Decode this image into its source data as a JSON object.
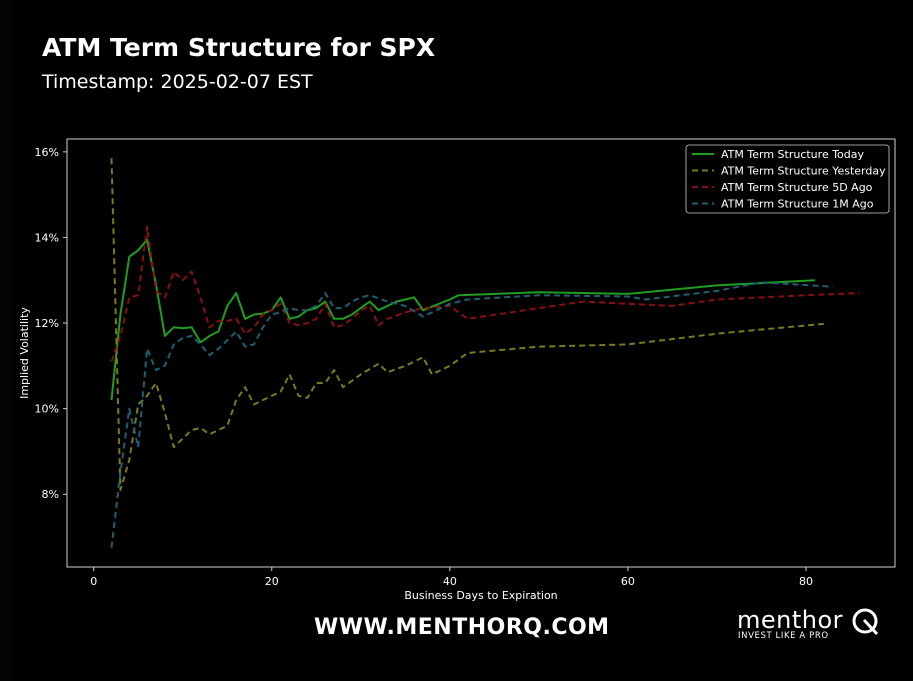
{
  "header": {
    "title": "ATM Term Structure for SPX",
    "subtitle": "Timestamp: 2025-02-07 EST"
  },
  "footer": {
    "url": "WWW.MENTHORQ.COM",
    "logo_word": "menthor",
    "logo_tagline": "INVEST LIKE A PRO",
    "logo_icon": "q-magnifier-icon"
  },
  "colors": {
    "background": "#000000",
    "today": "#1f9e1f",
    "yesterday": "#7a7a1e",
    "five_day": "#8b0f0f",
    "one_month": "#1f5f73"
  },
  "chart_data": {
    "type": "line",
    "xlabel": "Business Days to Expiration",
    "ylabel": "Implied Volatility",
    "xlim": [
      -3,
      90
    ],
    "ylim": [
      6.3,
      16.3
    ],
    "xticks": [
      0,
      20,
      40,
      60,
      80
    ],
    "yticks": [
      8,
      10,
      12,
      14,
      16
    ],
    "ytick_format": "%",
    "grid": false,
    "legend_position": "top-right",
    "series": [
      {
        "name": "ATM Term Structure Today",
        "style": "solid",
        "color": "#1f9e1f",
        "points": [
          [
            2,
            10.2
          ],
          [
            3,
            12.2
          ],
          [
            4,
            13.55
          ],
          [
            5,
            13.7
          ],
          [
            6,
            13.95
          ],
          [
            7,
            12.9
          ],
          [
            8,
            11.7
          ],
          [
            9,
            11.9
          ],
          [
            10,
            11.88
          ],
          [
            11,
            11.9
          ],
          [
            12,
            11.55
          ],
          [
            13,
            11.7
          ],
          [
            14,
            11.8
          ],
          [
            15,
            12.4
          ],
          [
            16,
            12.7
          ],
          [
            17,
            12.1
          ],
          [
            18,
            12.2
          ],
          [
            19,
            12.22
          ],
          [
            20,
            12.3
          ],
          [
            21,
            12.6
          ],
          [
            22,
            12.1
          ],
          [
            23,
            12.15
          ],
          [
            24,
            12.3
          ],
          [
            25,
            12.35
          ],
          [
            26,
            12.5
          ],
          [
            27,
            12.1
          ],
          [
            28,
            12.1
          ],
          [
            29,
            12.2
          ],
          [
            30,
            12.35
          ],
          [
            31,
            12.5
          ],
          [
            32,
            12.3
          ],
          [
            33,
            12.4
          ],
          [
            34,
            12.5
          ],
          [
            35,
            12.55
          ],
          [
            36,
            12.6
          ],
          [
            37,
            12.3
          ],
          [
            40,
            12.55
          ],
          [
            41,
            12.65
          ],
          [
            50,
            12.72
          ],
          [
            60,
            12.68
          ],
          [
            70,
            12.88
          ],
          [
            81,
            13.0
          ]
        ]
      },
      {
        "name": "ATM Term Structure Yesterday",
        "style": "dashed",
        "color": "#7a7a1e",
        "points": [
          [
            2,
            15.85
          ],
          [
            3,
            8.1
          ],
          [
            4,
            8.8
          ],
          [
            5,
            10.1
          ],
          [
            6,
            10.3
          ],
          [
            7,
            10.6
          ],
          [
            8,
            9.9
          ],
          [
            9,
            9.1
          ],
          [
            10,
            9.3
          ],
          [
            11,
            9.5
          ],
          [
            12,
            9.55
          ],
          [
            13,
            9.4
          ],
          [
            14,
            9.5
          ],
          [
            15,
            9.6
          ],
          [
            16,
            10.2
          ],
          [
            17,
            10.5
          ],
          [
            18,
            10.1
          ],
          [
            20,
            10.3
          ],
          [
            21,
            10.4
          ],
          [
            22,
            10.8
          ],
          [
            23,
            10.3
          ],
          [
            24,
            10.25
          ],
          [
            25,
            10.6
          ],
          [
            26,
            10.6
          ],
          [
            27,
            10.9
          ],
          [
            28,
            10.5
          ],
          [
            30,
            10.8
          ],
          [
            32,
            11.05
          ],
          [
            33,
            10.85
          ],
          [
            35,
            11.0
          ],
          [
            37,
            11.2
          ],
          [
            38,
            10.8
          ],
          [
            40,
            11.0
          ],
          [
            42,
            11.3
          ],
          [
            50,
            11.45
          ],
          [
            60,
            11.5
          ],
          [
            70,
            11.75
          ],
          [
            75,
            11.85
          ],
          [
            82,
            11.98
          ]
        ]
      },
      {
        "name": "ATM Term Structure 5D Ago",
        "style": "dashed",
        "color": "#8b0f0f",
        "points": [
          [
            2,
            11.1
          ],
          [
            3,
            11.7
          ],
          [
            4,
            12.6
          ],
          [
            5,
            12.65
          ],
          [
            6,
            14.25
          ],
          [
            7,
            12.75
          ],
          [
            8,
            12.6
          ],
          [
            9,
            13.2
          ],
          [
            10,
            13.0
          ],
          [
            11,
            13.2
          ],
          [
            12,
            12.6
          ],
          [
            13,
            11.9
          ],
          [
            14,
            12.05
          ],
          [
            15,
            12.05
          ],
          [
            16,
            12.1
          ],
          [
            17,
            11.75
          ],
          [
            18,
            11.9
          ],
          [
            19,
            12.2
          ],
          [
            20,
            12.3
          ],
          [
            21,
            12.45
          ],
          [
            22,
            12.0
          ],
          [
            23,
            11.95
          ],
          [
            24,
            12.0
          ],
          [
            25,
            12.1
          ],
          [
            26,
            12.45
          ],
          [
            27,
            11.9
          ],
          [
            28,
            11.95
          ],
          [
            29,
            12.1
          ],
          [
            30,
            12.3
          ],
          [
            31,
            12.4
          ],
          [
            32,
            11.95
          ],
          [
            33,
            12.1
          ],
          [
            35,
            12.25
          ],
          [
            37,
            12.35
          ],
          [
            40,
            12.4
          ],
          [
            42,
            12.1
          ],
          [
            50,
            12.35
          ],
          [
            55,
            12.5
          ],
          [
            60,
            12.45
          ],
          [
            65,
            12.4
          ],
          [
            70,
            12.55
          ],
          [
            75,
            12.6
          ],
          [
            80,
            12.65
          ],
          [
            86,
            12.7
          ]
        ]
      },
      {
        "name": "ATM Term Structure 1M Ago",
        "style": "dashed",
        "color": "#1f5f73",
        "points": [
          [
            2,
            6.75
          ],
          [
            3,
            8.5
          ],
          [
            4,
            10.0
          ],
          [
            5,
            9.1
          ],
          [
            6,
            11.4
          ],
          [
            7,
            10.9
          ],
          [
            8,
            11.0
          ],
          [
            9,
            11.5
          ],
          [
            10,
            11.65
          ],
          [
            11,
            11.7
          ],
          [
            12,
            11.5
          ],
          [
            13,
            11.25
          ],
          [
            14,
            11.4
          ],
          [
            15,
            11.6
          ],
          [
            16,
            11.8
          ],
          [
            17,
            11.45
          ],
          [
            18,
            11.5
          ],
          [
            19,
            11.9
          ],
          [
            20,
            12.2
          ],
          [
            21,
            12.25
          ],
          [
            22,
            12.35
          ],
          [
            23,
            12.3
          ],
          [
            24,
            12.3
          ],
          [
            25,
            12.4
          ],
          [
            26,
            12.7
          ],
          [
            27,
            12.35
          ],
          [
            28,
            12.35
          ],
          [
            29,
            12.5
          ],
          [
            30,
            12.6
          ],
          [
            31,
            12.65
          ],
          [
            33,
            12.5
          ],
          [
            35,
            12.4
          ],
          [
            37,
            12.15
          ],
          [
            40,
            12.45
          ],
          [
            42,
            12.55
          ],
          [
            50,
            12.65
          ],
          [
            60,
            12.62
          ],
          [
            62,
            12.55
          ],
          [
            70,
            12.75
          ],
          [
            75,
            12.95
          ],
          [
            83,
            12.85
          ]
        ]
      }
    ]
  }
}
